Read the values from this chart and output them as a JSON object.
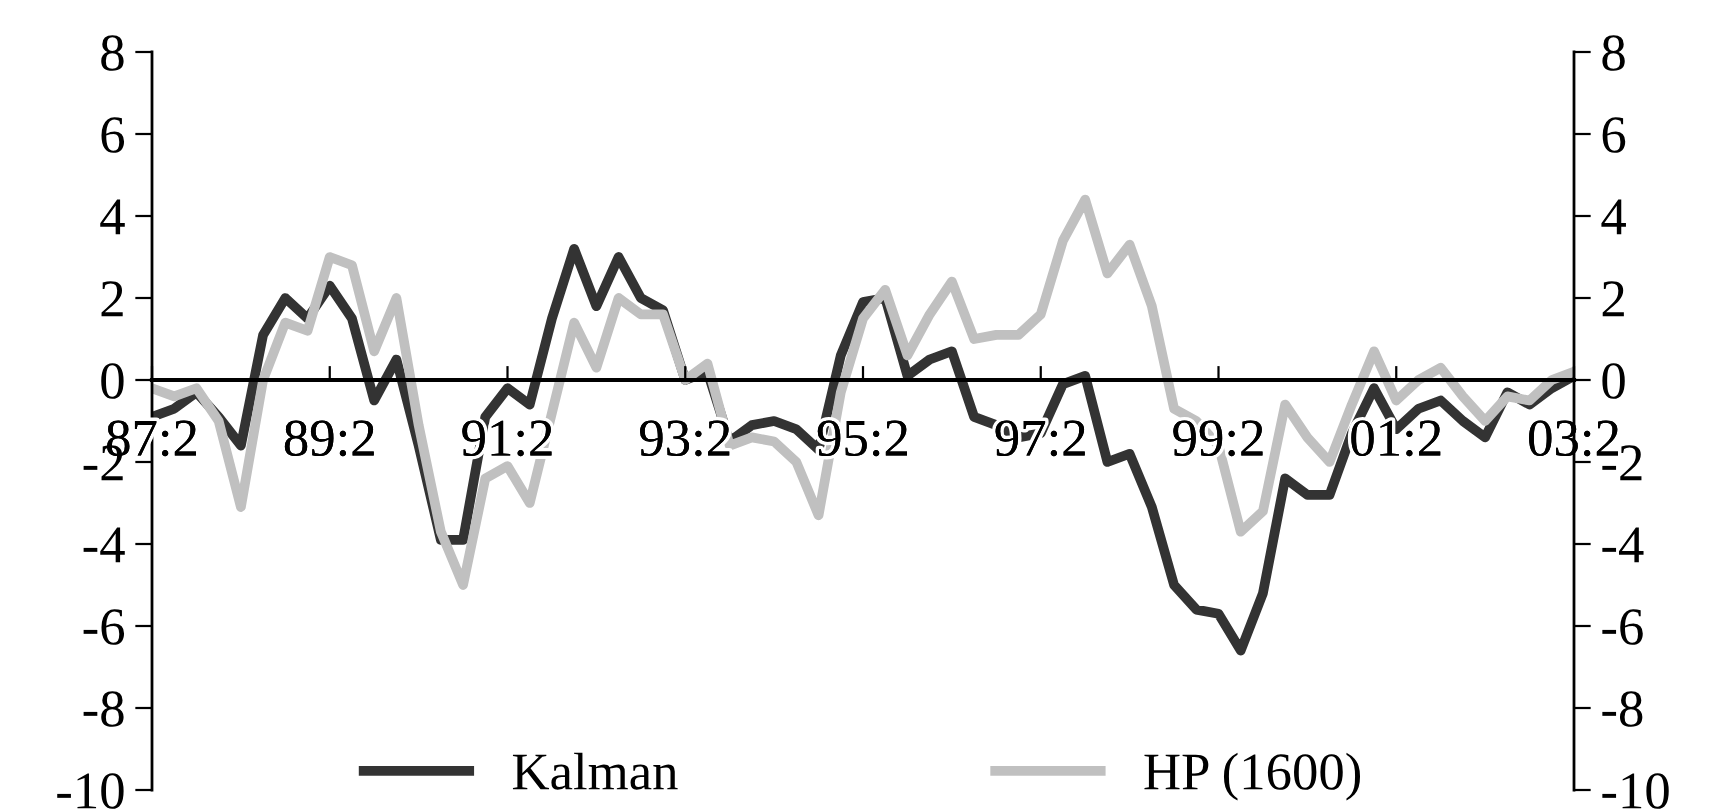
{
  "chart_data": {
    "type": "line",
    "categories": [
      "87:2",
      null,
      null,
      null,
      null,
      null,
      null,
      null,
      "89:2",
      null,
      null,
      null,
      null,
      null,
      null,
      null,
      "91:2",
      null,
      null,
      null,
      null,
      null,
      null,
      null,
      "93:2",
      null,
      null,
      null,
      null,
      null,
      null,
      null,
      "95:2",
      null,
      null,
      null,
      null,
      null,
      null,
      null,
      "97:2",
      null,
      null,
      null,
      null,
      null,
      null,
      null,
      "99:2",
      null,
      null,
      null,
      null,
      null,
      null,
      null,
      "01:2",
      null,
      null,
      null,
      null,
      null,
      null,
      null,
      "03:2"
    ],
    "series": [
      {
        "name": "Kalman",
        "color": "#333333",
        "values": [
          -0.9,
          -0.7,
          -0.3,
          -0.9,
          -1.6,
          1.1,
          2.0,
          1.5,
          2.3,
          1.5,
          -0.5,
          0.5,
          -1.6,
          -3.9,
          -3.9,
          -0.9,
          -0.2,
          -0.6,
          1.5,
          3.2,
          1.8,
          3.0,
          2.0,
          1.7,
          0.0,
          0.2,
          -1.5,
          -1.1,
          -1.0,
          -1.2,
          -1.7,
          0.6,
          1.9,
          2.0,
          0.1,
          0.5,
          0.7,
          -0.9,
          -1.1,
          -1.4,
          -1.3,
          -0.1,
          0.1,
          -2.0,
          -1.8,
          -3.1,
          -5.0,
          -5.6,
          -5.7,
          -6.6,
          -5.2,
          -2.4,
          -2.8,
          -2.8,
          -1.3,
          -0.2,
          -1.2,
          -0.7,
          -0.5,
          -1.0,
          -1.4,
          -0.3,
          -0.6,
          -0.2,
          0.1
        ]
      },
      {
        "name": "HP (1600)",
        "color": "#c0c0c0",
        "values": [
          -0.2,
          -0.4,
          -0.2,
          -1.0,
          -3.1,
          0.0,
          1.4,
          1.2,
          3.0,
          2.8,
          0.7,
          2.0,
          -1.1,
          -3.7,
          -5.0,
          -2.4,
          -2.1,
          -3.0,
          -0.8,
          1.4,
          0.3,
          2.0,
          1.6,
          1.6,
          0.0,
          0.4,
          -1.6,
          -1.4,
          -1.5,
          -2.0,
          -3.3,
          -0.3,
          1.5,
          2.2,
          0.6,
          1.6,
          2.4,
          1.0,
          1.1,
          1.1,
          1.6,
          3.4,
          4.4,
          2.6,
          3.3,
          1.8,
          -0.7,
          -1.0,
          -1.6,
          -3.7,
          -3.2,
          -0.6,
          -1.4,
          -2.0,
          -0.6,
          0.7,
          -0.5,
          0.0,
          0.3,
          -0.4,
          -1.0,
          -0.4,
          -0.5,
          0.0,
          0.2
        ]
      }
    ],
    "ylim": [
      -10,
      8
    ],
    "yticks": [
      -10,
      -8,
      -6,
      -4,
      -2,
      0,
      2,
      4,
      6,
      8
    ],
    "y2lim": [
      -10,
      8
    ],
    "y2ticks": [
      -10,
      -8,
      -6,
      -4,
      -2,
      0,
      2,
      4,
      6,
      8
    ],
    "grid": false,
    "legend": "bottom",
    "line_style": "solid",
    "marker": "none"
  }
}
